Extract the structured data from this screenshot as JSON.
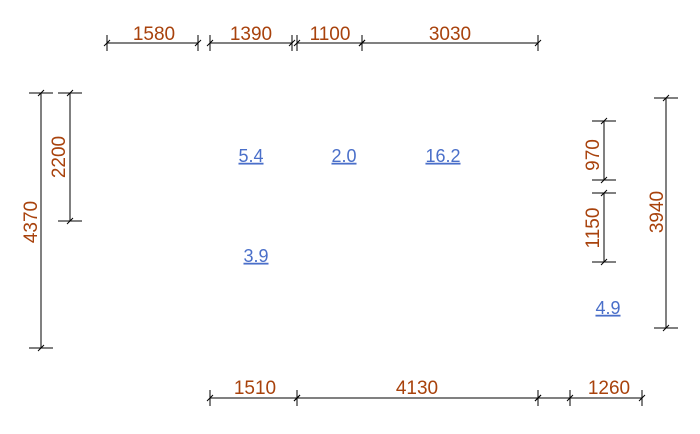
{
  "dimensions": {
    "top": [
      "1580",
      "1390",
      "1100",
      "3030"
    ],
    "bottom": [
      "1510",
      "4130",
      "1260"
    ],
    "left": [
      "4370",
      "2200"
    ],
    "right": [
      "970",
      "1150",
      "3940"
    ]
  },
  "values": [
    "5.4",
    "2.0",
    "16.2",
    "3.9",
    "4.9"
  ]
}
